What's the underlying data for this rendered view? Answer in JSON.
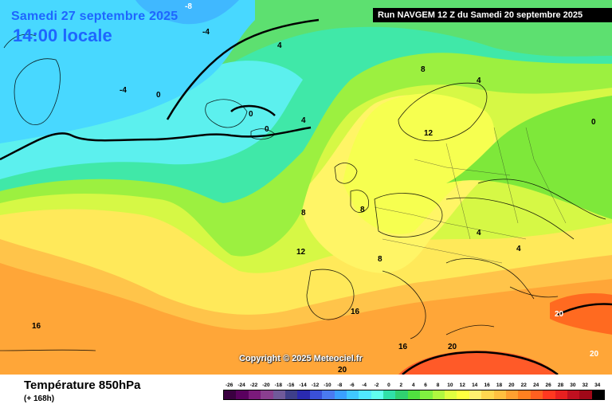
{
  "map": {
    "date_label": "Samedi 27 septembre 2025",
    "time_label": "14:00 locale",
    "run_label": "Run NAVGEM 12 Z du Samedi 20 septembre 2025",
    "copyright": "Copyright © 2025 Meteociel.fr",
    "contour_labels": [
      "-8",
      "-4",
      "-4",
      "0",
      "0",
      "0",
      "4",
      "4",
      "4",
      "8",
      "12",
      "8",
      "8",
      "8",
      "4",
      "4",
      "12",
      "16",
      "16",
      "16",
      "20",
      "20",
      "20",
      "20",
      "0"
    ]
  },
  "footer": {
    "title": "Température 850hPa",
    "subtitle": "(+ 168h)"
  },
  "legend": {
    "ticks": [
      "-26",
      "-24",
      "-22",
      "-20",
      "-18",
      "-16",
      "-14",
      "-12",
      "-10",
      "-8",
      "-6",
      "-4",
      "-2",
      "0",
      "2",
      "4",
      "6",
      "8",
      "10",
      "12",
      "14",
      "16",
      "18",
      "20",
      "22",
      "24",
      "26",
      "28",
      "30",
      "32",
      "34"
    ],
    "colors": [
      "#3a0040",
      "#5a005f",
      "#7a1a7a",
      "#8a3f8f",
      "#705a9a",
      "#3e3f8a",
      "#2a2ab0",
      "#3a50d8",
      "#4a7af0",
      "#3aa0ff",
      "#40c8ff",
      "#50e8ff",
      "#60ffee",
      "#30e0a8",
      "#30d070",
      "#50e040",
      "#80f040",
      "#b0f840",
      "#e0ff40",
      "#ffff40",
      "#fff070",
      "#ffd850",
      "#ffc040",
      "#ffa030",
      "#ff8020",
      "#ff6020",
      "#ff3820",
      "#e82020",
      "#c01020",
      "#a00818",
      "#000000"
    ]
  }
}
